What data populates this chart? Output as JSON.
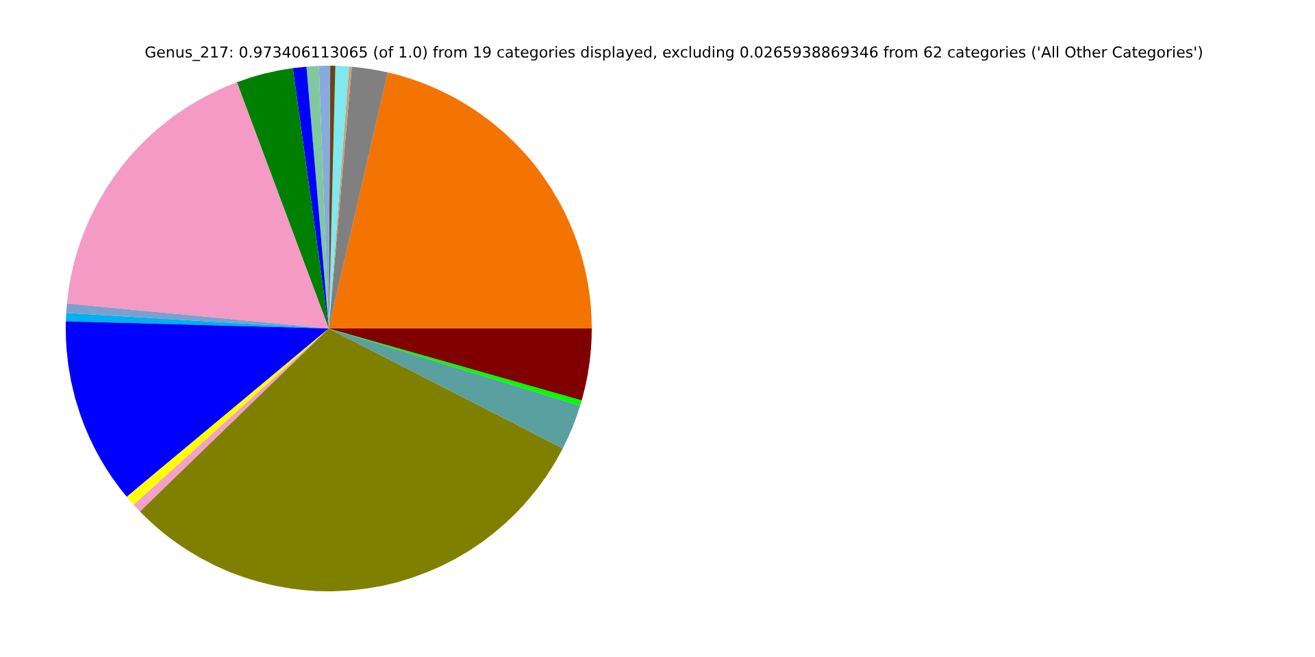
{
  "chart_data": {
    "type": "pie",
    "title": "Genus_217: 0.973406113065 (of 1.0) from 19 categories displayed, excluding 0.0265938869346 from 62 categories ('All Other Categories')",
    "categories": [
      null,
      null,
      null,
      null,
      null,
      null,
      null,
      null,
      null,
      null,
      null,
      null,
      null,
      null,
      null,
      null,
      null,
      null,
      null
    ],
    "values": [
      21.4,
      2.2,
      0.17,
      0.83,
      0.31,
      0.69,
      0.75,
      0.83,
      3.5,
      17.8,
      0.58,
      0.5,
      11.5,
      0.64,
      0.56,
      30.2,
      2.8,
      0.33,
      4.41
    ],
    "colors": [
      "#f37303",
      "#808080",
      "#c8a078",
      "#7fe8f0",
      "#6b4513",
      "#88aadd",
      "#80c8a0",
      "#0000ff",
      "#008000",
      "#f49ac4",
      "#7ba0d0",
      "#00b0f0",
      "#0000ff",
      "#ffff00",
      "#f4a0c8",
      "#808000",
      "#5aa0a0",
      "#00ff00",
      "#800000"
    ]
  }
}
